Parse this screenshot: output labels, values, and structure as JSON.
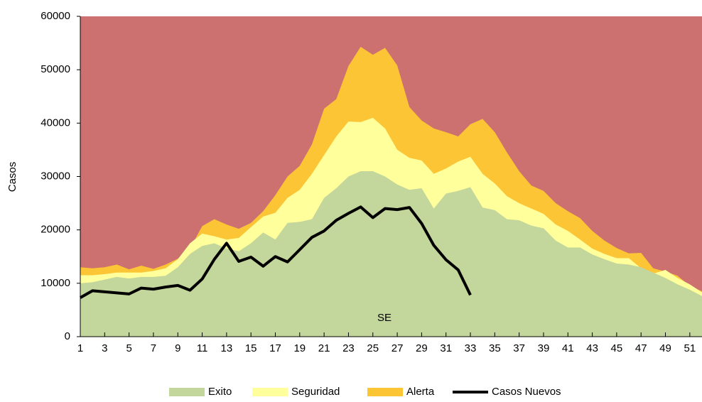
{
  "chart_data": {
    "type": "area",
    "background": "#cd7070",
    "xlabel": "SE",
    "ylabel": "Casos",
    "x": [
      1,
      2,
      3,
      4,
      5,
      6,
      7,
      8,
      9,
      10,
      11,
      12,
      13,
      14,
      15,
      16,
      17,
      18,
      19,
      20,
      21,
      22,
      23,
      24,
      25,
      26,
      27,
      28,
      29,
      30,
      31,
      32,
      33,
      34,
      35,
      36,
      37,
      38,
      39,
      40,
      41,
      42,
      43,
      44,
      45,
      46,
      47,
      48,
      49,
      50,
      51,
      52
    ],
    "xlim": [
      1,
      52
    ],
    "xticks": [
      1,
      3,
      5,
      7,
      9,
      11,
      13,
      15,
      17,
      19,
      21,
      23,
      25,
      27,
      29,
      31,
      33,
      35,
      37,
      39,
      41,
      43,
      45,
      47,
      49,
      51
    ],
    "ylim": [
      0,
      60000
    ],
    "yticks": [
      0,
      10000,
      20000,
      30000,
      40000,
      50000,
      60000
    ],
    "series": [
      {
        "name": "Alerta",
        "type": "area",
        "color": "#fbc535",
        "values": [
          13000,
          12800,
          13000,
          13500,
          12600,
          13300,
          12700,
          13500,
          14600,
          16500,
          20700,
          22000,
          21000,
          20200,
          21300,
          23500,
          26500,
          30000,
          32000,
          36000,
          42700,
          44500,
          50700,
          54300,
          52800,
          54100,
          50800,
          43000,
          40500,
          39000,
          38300,
          37500,
          39800,
          40800,
          38300,
          34500,
          31000,
          28300,
          27300,
          25000,
          23500,
          22200,
          19800,
          18000,
          16600,
          15600,
          15700,
          12800,
          12200,
          11400,
          9500,
          8500
        ]
      },
      {
        "name": "Seguridad",
        "type": "area",
        "color": "#ffff9c",
        "values": [
          11500,
          11500,
          11700,
          12000,
          12000,
          12000,
          12300,
          12800,
          14500,
          17500,
          19300,
          18800,
          18200,
          18500,
          20500,
          22500,
          23200,
          26000,
          27500,
          30500,
          34000,
          37500,
          40300,
          40200,
          41000,
          39000,
          35000,
          33500,
          33000,
          30500,
          31500,
          32800,
          33700,
          30500,
          28700,
          26300,
          25000,
          24000,
          23000,
          21000,
          19800,
          18200,
          16500,
          15500,
          14700,
          14700,
          12800,
          11800,
          12500,
          11000,
          9800,
          8300
        ]
      },
      {
        "name": "Exito",
        "type": "area",
        "color": "#c3d69b",
        "values": [
          10000,
          10200,
          10700,
          11200,
          10900,
          11200,
          11200,
          11400,
          13000,
          15500,
          17000,
          17500,
          16500,
          16000,
          17500,
          19500,
          18200,
          21300,
          21500,
          22000,
          26000,
          27800,
          30000,
          31000,
          31000,
          30000,
          28500,
          27500,
          27800,
          24000,
          26800,
          27300,
          28000,
          24200,
          23700,
          22000,
          21800,
          20800,
          20300,
          18000,
          16700,
          16700,
          15400,
          14500,
          13700,
          13500,
          13000,
          12000,
          11000,
          9800,
          8800,
          7600
        ]
      },
      {
        "name": "Casos Nuevos",
        "type": "line",
        "color": "#000000",
        "values": [
          7300,
          8600,
          8400,
          8200,
          8000,
          9100,
          8900,
          9300,
          9600,
          8700,
          10800,
          14500,
          17500,
          14100,
          14900,
          13200,
          15000,
          14000,
          16300,
          18600,
          19800,
          21800,
          23100,
          24300,
          22300,
          24000,
          23800,
          24200,
          21200,
          17100,
          14400,
          12500,
          7800,
          null,
          null,
          null,
          null,
          null,
          null,
          null,
          null,
          null,
          null,
          null,
          null,
          null,
          null,
          null,
          null,
          null,
          null,
          null
        ]
      }
    ],
    "legend_order": [
      2,
      1,
      0,
      3
    ]
  }
}
